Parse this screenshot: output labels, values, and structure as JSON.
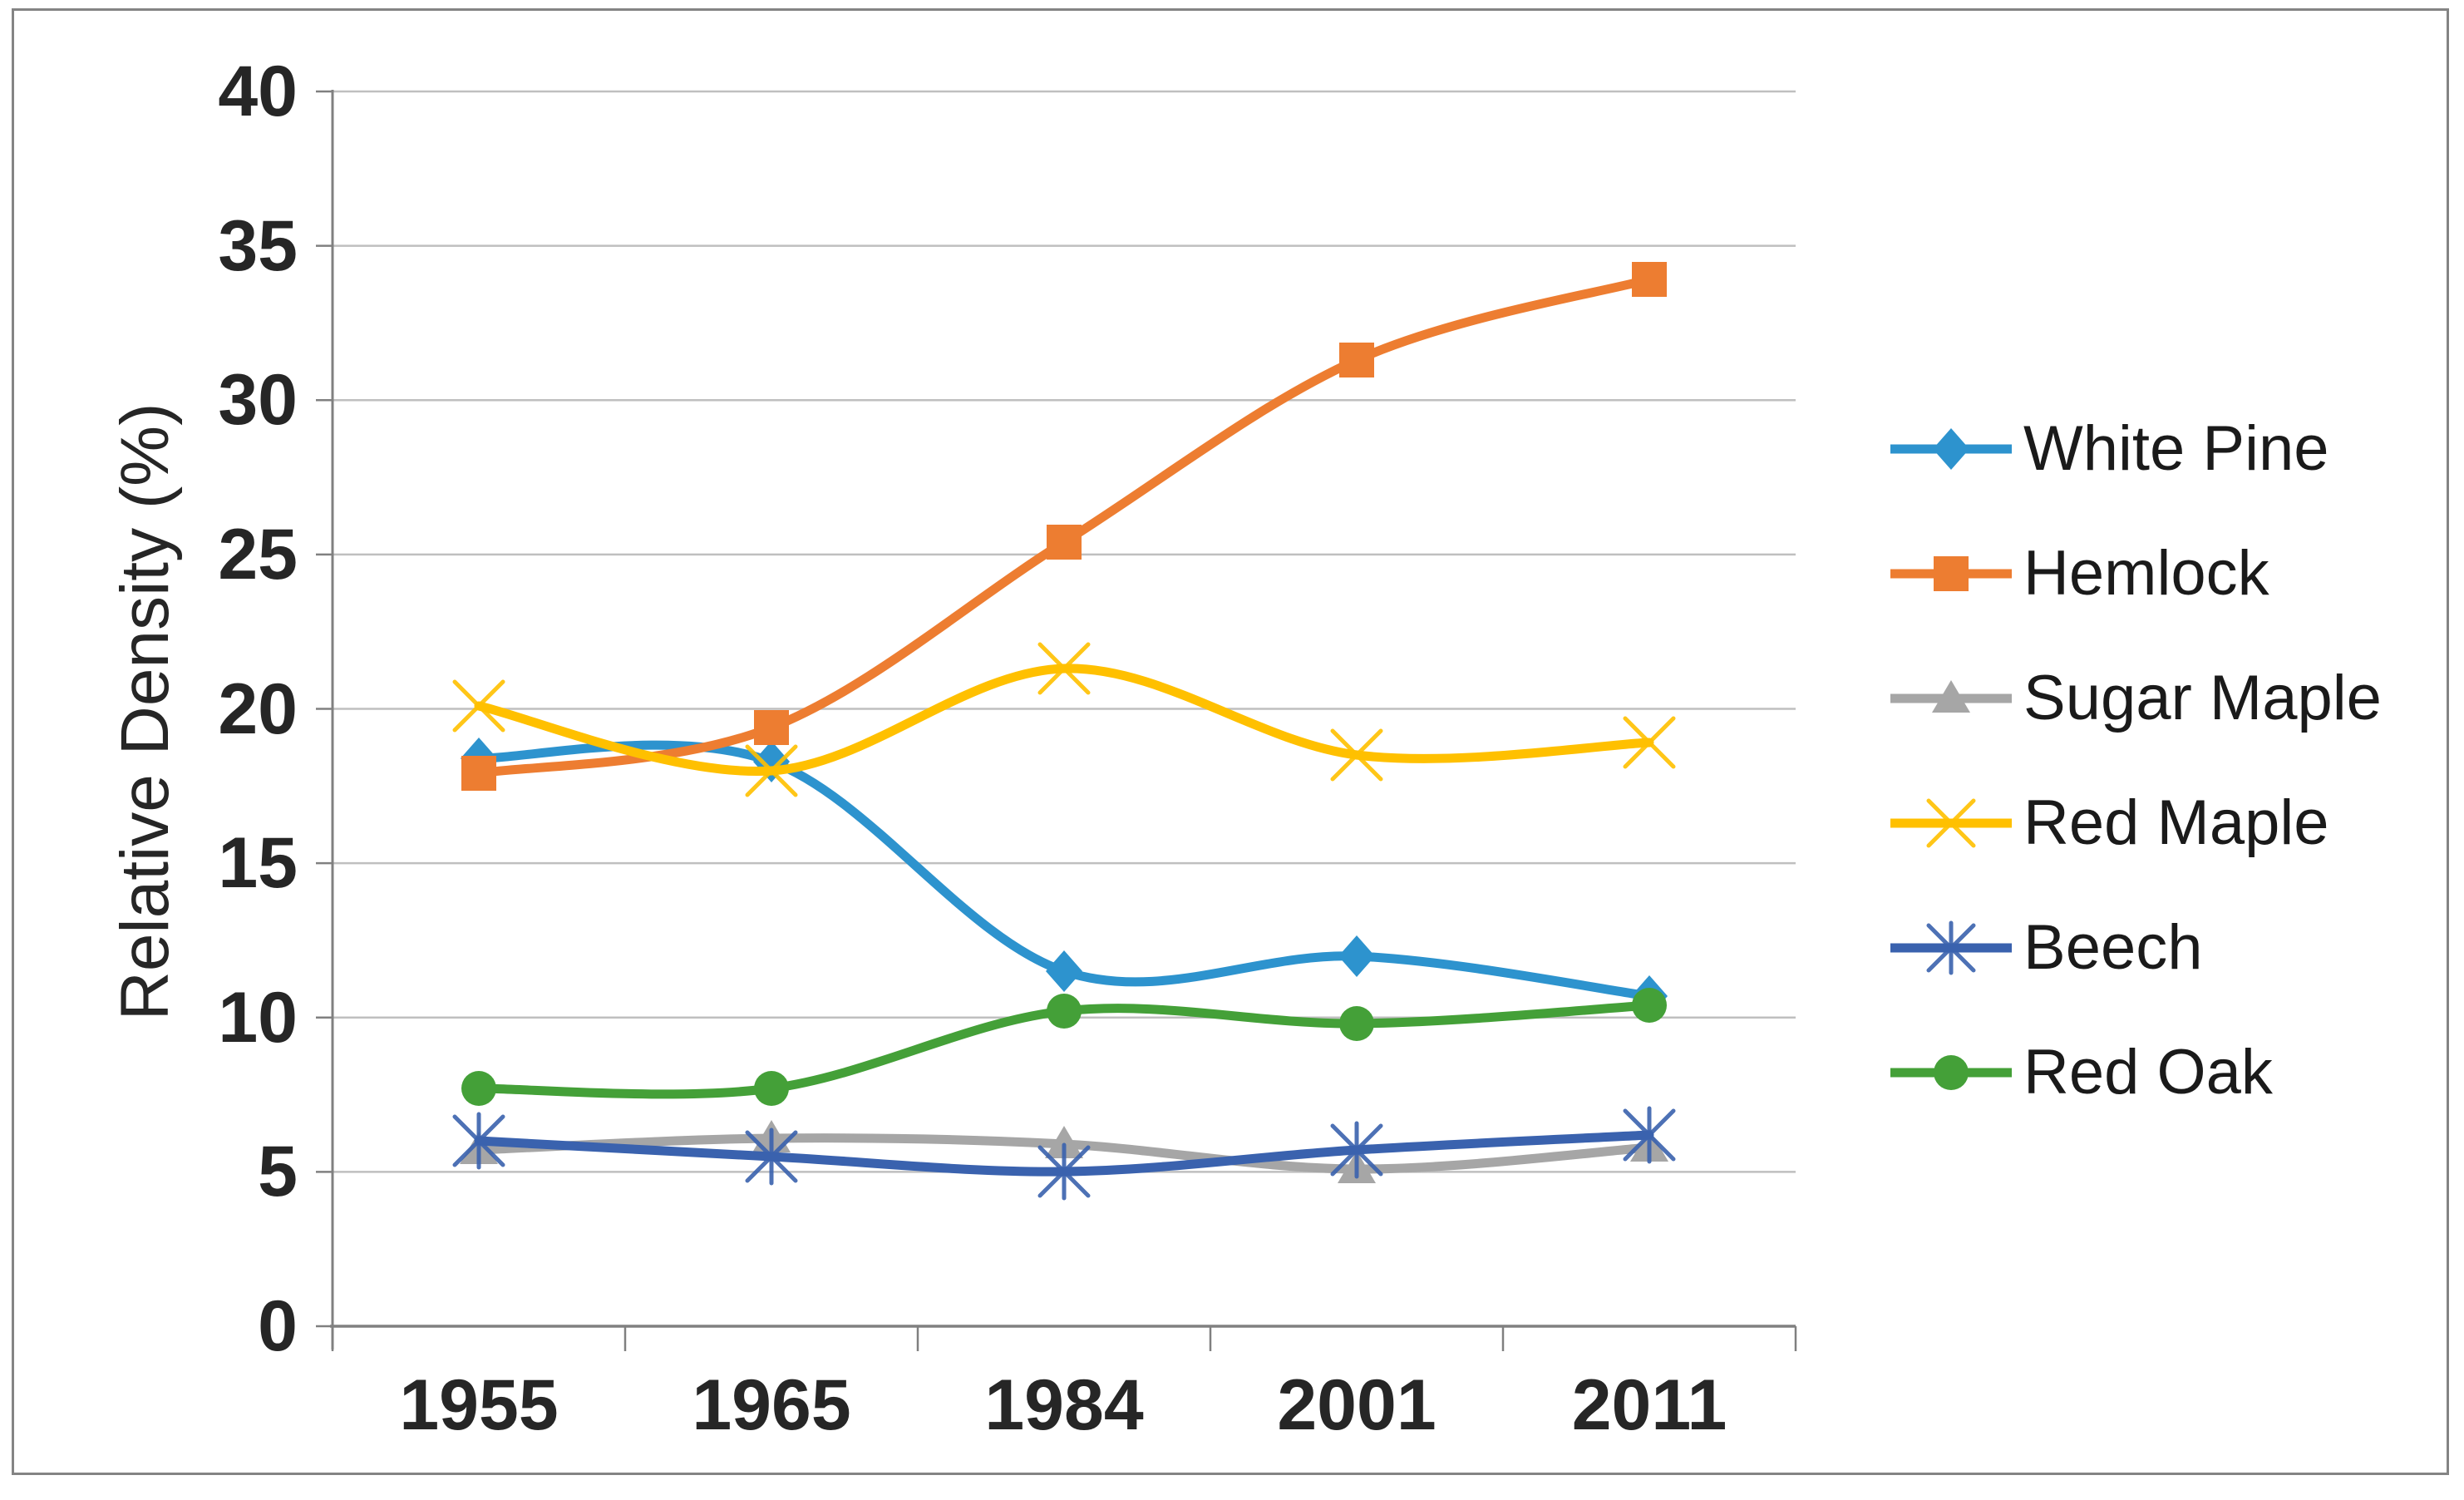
{
  "chart_data": {
    "type": "line",
    "title": "",
    "xlabel": "",
    "ylabel": "Relative Density (%)",
    "x_categories": [
      "1955",
      "1965",
      "1984",
      "2001",
      "2011"
    ],
    "y_ticks": [
      40,
      35,
      30,
      25,
      20,
      15,
      10,
      5,
      0
    ],
    "ylim": [
      0,
      40
    ],
    "grid": "horizontal",
    "smooth_lines": true,
    "legend_position": "right",
    "series": [
      {
        "name": "White Pine",
        "color": "#2D93CE",
        "marker": "diamond",
        "values": [
          18.4,
          18.3,
          11.5,
          12.0,
          10.7
        ]
      },
      {
        "name": "Hemlock",
        "color": "#ED7D31",
        "marker": "square",
        "values": [
          17.9,
          19.4,
          25.4,
          31.3,
          33.9
        ]
      },
      {
        "name": "Sugar Maple",
        "color": "#A6A6A6",
        "marker": "triangle",
        "values": [
          5.7,
          6.1,
          5.9,
          5.1,
          5.8
        ]
      },
      {
        "name": "Red Maple",
        "color": "#FFC000",
        "marker": "x",
        "values": [
          20.1,
          18.0,
          21.3,
          18.5,
          18.9
        ]
      },
      {
        "name": "Beech",
        "color": "#3A62AE",
        "marker": "asterisk",
        "values": [
          6.0,
          5.5,
          5.0,
          5.7,
          6.2
        ]
      },
      {
        "name": "Red Oak",
        "color": "#44A038",
        "marker": "circle",
        "values": [
          7.7,
          7.7,
          10.2,
          9.8,
          10.4
        ]
      }
    ]
  },
  "colors": {
    "gridline": "#BFBFBF",
    "axis": "#808080",
    "tick": "#808080",
    "frame": "#848484",
    "text": "#262626"
  }
}
